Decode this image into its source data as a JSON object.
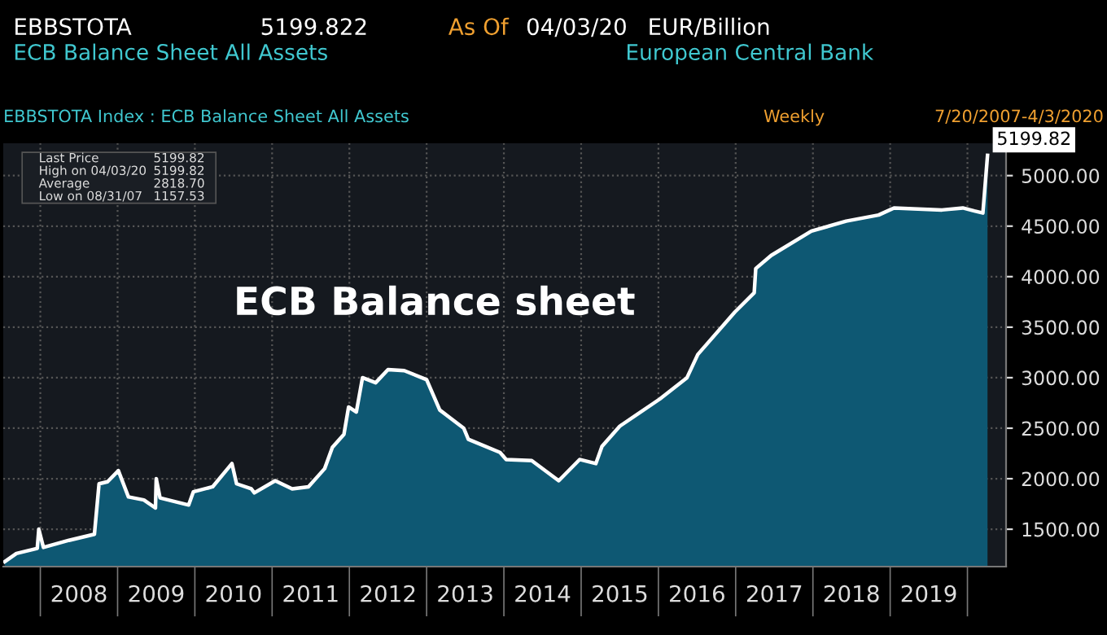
{
  "chart_data": {
    "type": "area",
    "title": "ECB Balance sheet",
    "x": [
      2007.54,
      2007.69,
      2007.96,
      2007.98,
      2008.04,
      2008.37,
      2008.7,
      2008.76,
      2008.87,
      2009.01,
      2009.14,
      2009.34,
      2009.49,
      2009.5,
      2009.55,
      2009.92,
      2009.98,
      2010.23,
      2010.48,
      2010.54,
      2010.73,
      2010.77,
      2011.04,
      2011.26,
      2011.47,
      2011.68,
      2011.78,
      2011.93,
      2011.99,
      2012.09,
      2012.17,
      2012.34,
      2012.5,
      2012.71,
      2013.0,
      2013.17,
      2013.48,
      2013.54,
      2013.95,
      2014.03,
      2014.36,
      2014.71,
      2014.98,
      2015.19,
      2015.27,
      2015.5,
      2016.02,
      2016.37,
      2016.51,
      2016.99,
      2017.24,
      2017.26,
      2017.46,
      2017.98,
      2018.43,
      2018.85,
      2019.05,
      2019.67,
      2019.94,
      2020.09,
      2020.2,
      2020.26
    ],
    "series": [
      {
        "color": "#0e5873",
        "values": [
          1180,
          1260,
          1310,
          1500,
          1320,
          1390,
          1450,
          1950,
          1970,
          2080,
          1820,
          1790,
          1710,
          2000,
          1810,
          1740,
          1870,
          1920,
          2150,
          1950,
          1900,
          1860,
          1980,
          1900,
          1920,
          2100,
          2310,
          2440,
          2710,
          2660,
          3000,
          2950,
          3080,
          3070,
          2980,
          2680,
          2500,
          2390,
          2260,
          2190,
          2180,
          1980,
          2190,
          2150,
          2320,
          2520,
          2790,
          3000,
          3230,
          3650,
          3840,
          4080,
          4210,
          4450,
          4550,
          4610,
          4680,
          4660,
          4680,
          4650,
          4630,
          5200
        ]
      }
    ],
    "xlim": [
      2007.52,
      2020.5
    ],
    "xticks": [
      {
        "value": 2008,
        "label": null
      },
      {
        "value": 2008.5,
        "label": "2008"
      },
      {
        "value": 2009,
        "label": null
      },
      {
        "value": 2009.5,
        "label": "2009"
      },
      {
        "value": 2010,
        "label": null
      },
      {
        "value": 2010.5,
        "label": "2010"
      },
      {
        "value": 2011,
        "label": null
      },
      {
        "value": 2011.5,
        "label": "2011"
      },
      {
        "value": 2012,
        "label": null
      },
      {
        "value": 2012.5,
        "label": "2012"
      },
      {
        "value": 2013,
        "label": null
      },
      {
        "value": 2013.5,
        "label": "2013"
      },
      {
        "value": 2014,
        "label": null
      },
      {
        "value": 2014.5,
        "label": "2014"
      },
      {
        "value": 2015,
        "label": null
      },
      {
        "value": 2015.5,
        "label": "2015"
      },
      {
        "value": 2016,
        "label": null
      },
      {
        "value": 2016.5,
        "label": "2016"
      },
      {
        "value": 2017,
        "label": null
      },
      {
        "value": 2017.5,
        "label": "2017"
      },
      {
        "value": 2018,
        "label": null
      },
      {
        "value": 2018.5,
        "label": "2018"
      },
      {
        "value": 2019,
        "label": null
      },
      {
        "value": 2019.5,
        "label": "2019"
      },
      {
        "value": 2020,
        "label": null
      }
    ],
    "ylim": [
      1130,
      5320
    ],
    "yticks": [
      {
        "value": 1500,
        "label": "1500.00"
      },
      {
        "value": 2000,
        "label": "2000.00"
      },
      {
        "value": 2500,
        "label": "2500.00"
      },
      {
        "value": 3000,
        "label": "3000.00"
      },
      {
        "value": 3500,
        "label": "3500.00"
      },
      {
        "value": 4000,
        "label": "4000.00"
      },
      {
        "value": 4500,
        "label": "4500.00"
      },
      {
        "value": 5000,
        "label": "5000.00"
      }
    ],
    "grid": true,
    "annotations": [
      "EBBSTOTA",
      "5199.822",
      "As Of",
      "04/03/20",
      "EUR/Billion",
      "ECB Balance Sheet All Assets",
      "European Central Bank",
      "EBBSTOTA Index : ECB Balance Sheet All Assets",
      "Weekly",
      "7/20/2007-4/3/2020",
      "Last Price   5199.82",
      "High on 04/03/20   5199.82",
      "Average   2818.70",
      "Low on 08/31/07   1157.53",
      {
        "text": "5199.82",
        "x": 2020.26,
        "y": 5199.82
      }
    ]
  }
}
